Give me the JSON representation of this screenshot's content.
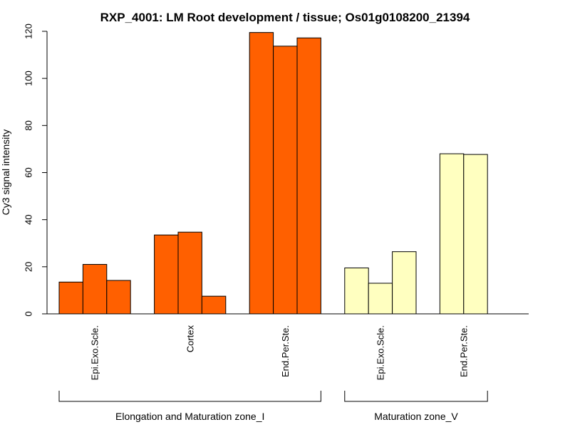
{
  "chart_data": {
    "type": "bar",
    "title": "RXP_4001: LM Root development / tissue; Os01g0108200_21394",
    "xlabel": "",
    "ylabel": "Cy3 signal intensity",
    "ylim": [
      0,
      120
    ],
    "yticks": [
      0,
      20,
      40,
      60,
      80,
      100,
      120
    ],
    "colors": {
      "Elongation and Maturation zone_I": "#ff6000",
      "Maturation zone_V": "#ffffc0"
    },
    "categories": [
      {
        "label": "Epi.Exo.Scle.",
        "group": "Elongation and Maturation zone_I",
        "values": [
          13.5,
          21.0,
          14.2
        ]
      },
      {
        "label": "Cortex",
        "group": "Elongation and Maturation zone_I",
        "values": [
          33.5,
          34.7,
          7.5
        ]
      },
      {
        "label": "End.Per.Ste.",
        "group": "Elongation and Maturation zone_I",
        "values": [
          119.5,
          113.7,
          117.2
        ]
      },
      {
        "label": "Epi.Exo.Scle.",
        "group": "Maturation zone_V",
        "values": [
          19.5,
          13.0,
          26.4
        ]
      },
      {
        "label": "End.Per.Ste.",
        "group": "Maturation zone_V",
        "values": [
          68.0,
          67.7
        ]
      }
    ],
    "groups": [
      "Elongation and Maturation zone_I",
      "Maturation zone_V"
    ]
  }
}
